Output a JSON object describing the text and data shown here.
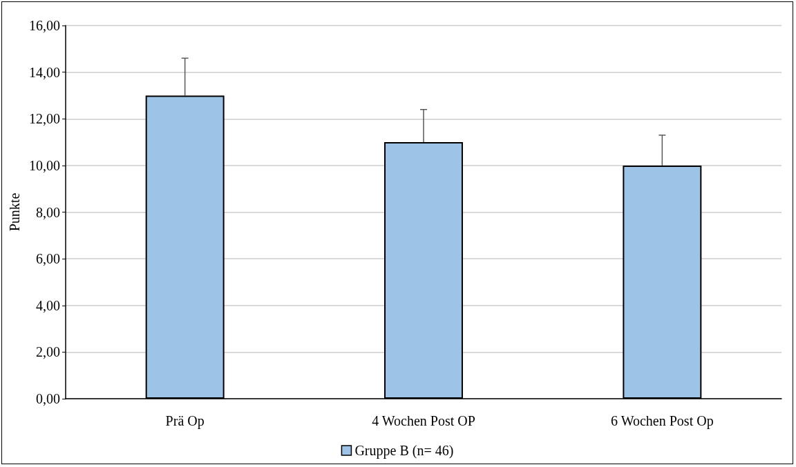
{
  "chart_data": {
    "type": "bar",
    "ylabel": "Punkte",
    "categories": [
      "Prä Op",
      "4 Wochen Post OP",
      "6 Wochen Post Op"
    ],
    "series": [
      {
        "name": "Gruppe B (n= 46)",
        "color": "#9dc3e6",
        "values": [
          13,
          11,
          10
        ],
        "errors": [
          [
            13,
            14.6
          ],
          [
            11,
            12.4
          ],
          [
            10,
            11.3
          ]
        ]
      }
    ],
    "ylim": [
      0,
      16
    ],
    "yticks": [
      {
        "value": 0,
        "label": "0,00"
      },
      {
        "value": 2,
        "label": "2,00"
      },
      {
        "value": 4,
        "label": "4,00"
      },
      {
        "value": 6,
        "label": "6,00"
      },
      {
        "value": 8,
        "label": "8,00"
      },
      {
        "value": 10,
        "label": "10,00"
      },
      {
        "value": 12,
        "label": "12,00"
      },
      {
        "value": 14,
        "label": "14,00"
      },
      {
        "value": 16,
        "label": "16,00"
      }
    ],
    "grid": "y",
    "legend": "bottom"
  }
}
